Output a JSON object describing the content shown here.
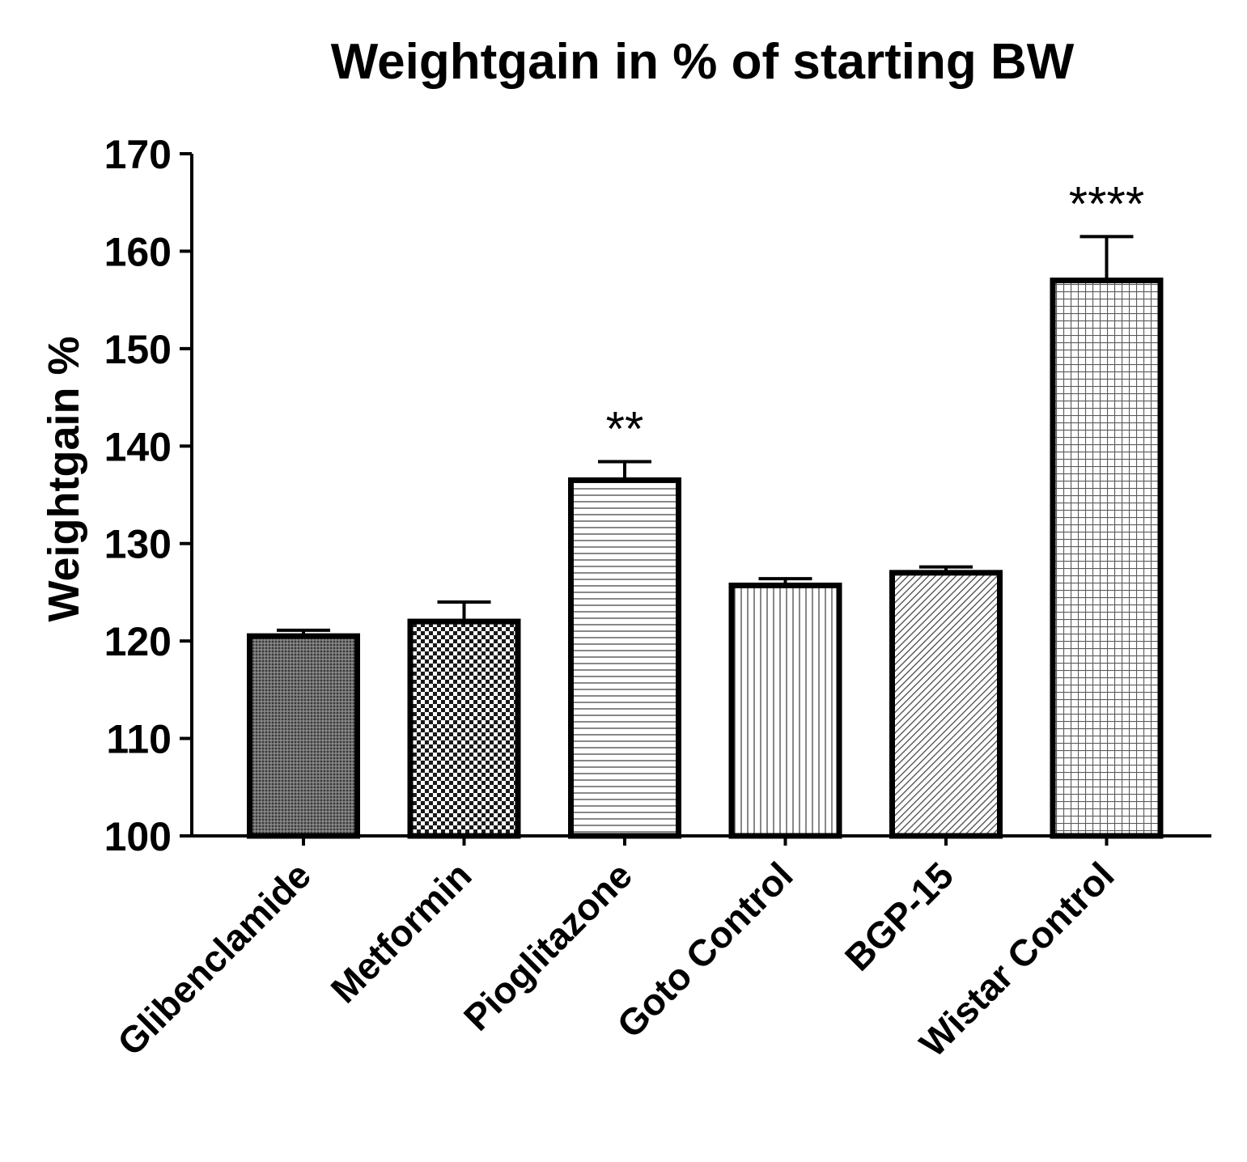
{
  "chart_data": {
    "type": "bar",
    "title": "Weightgain in % of starting BW",
    "xlabel": "",
    "ylabel": "Weightgain %",
    "ylim": [
      100,
      170
    ],
    "yticks": [
      100,
      110,
      120,
      130,
      140,
      150,
      160,
      170
    ],
    "categories": [
      "Glibenclamide",
      "Metformin",
      "Pioglitazone",
      "Goto Control",
      "BGP-15",
      "Wistar Control"
    ],
    "values": [
      120.5,
      122.0,
      136.5,
      125.7,
      127.0,
      157.0
    ],
    "error_upper": [
      0.6,
      2.0,
      1.9,
      0.7,
      0.6,
      4.5
    ],
    "significance": [
      "",
      "",
      "**",
      "",
      "",
      "****"
    ],
    "patterns": [
      "dense-grey",
      "checker",
      "horizontal-lines",
      "vertical-lines",
      "diagonal-hatch",
      "grid"
    ],
    "colors": {
      "stroke": "#000000",
      "fill": "#ffffff"
    },
    "grid": false
  }
}
